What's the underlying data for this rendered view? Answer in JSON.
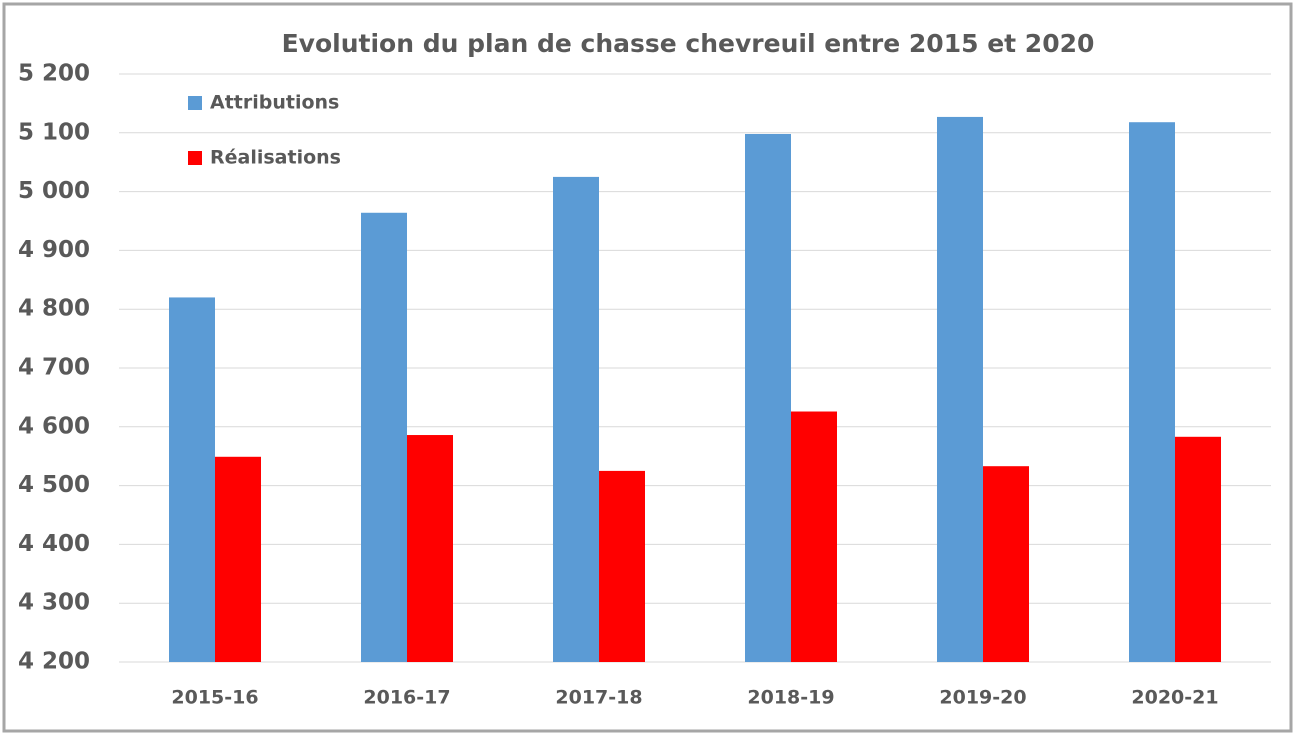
{
  "chart_data": {
    "type": "bar",
    "title": "Evolution du plan de chasse chevreuil entre 2015 et 2020",
    "categories": [
      "2015-16",
      "2016-17",
      "2017-18",
      "2018-19",
      "2019-20",
      "2020-21"
    ],
    "series": [
      {
        "name": "Attributions",
        "color": "#5b9bd5",
        "values": [
          4820,
          4964,
          5025,
          5098,
          5127,
          5118
        ]
      },
      {
        "name": "Réalisations",
        "color": "#ff0000",
        "values": [
          4549,
          4586,
          4525,
          4626,
          4533,
          4583
        ]
      }
    ],
    "ylim": [
      4200,
      5200
    ],
    "yticks": [
      {
        "value": 4200,
        "label": "4 200"
      },
      {
        "value": 4300,
        "label": "4 300"
      },
      {
        "value": 4400,
        "label": "4 400"
      },
      {
        "value": 4500,
        "label": "4 500"
      },
      {
        "value": 4600,
        "label": "4 600"
      },
      {
        "value": 4700,
        "label": "4 700"
      },
      {
        "value": 4800,
        "label": "4 800"
      },
      {
        "value": 4900,
        "label": "4 900"
      },
      {
        "value": 5000,
        "label": "5 000"
      },
      {
        "value": 5100,
        "label": "5 100"
      },
      {
        "value": 5200,
        "label": "5 200"
      }
    ],
    "grid": true,
    "legend": "top-left"
  }
}
